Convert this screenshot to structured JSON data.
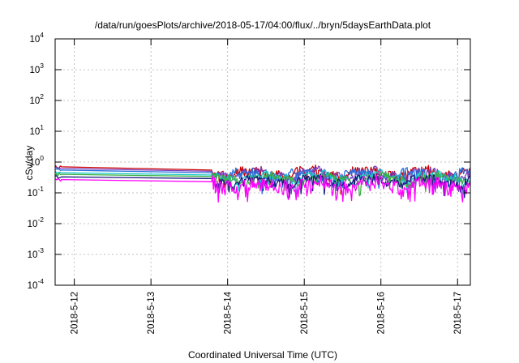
{
  "chart_data": {
    "type": "line",
    "title": "/data/run/goesPlots/archive/2018-05-17/04:00/flux/../bryn/5daysEarthData.plot",
    "xlabel": "Coordinated Universal Time (UTC)",
    "ylabel": "cSv/day",
    "yscale": "log",
    "ylim": [
      0.0001,
      10000
    ],
    "xlim": [
      "2018-05-11T18:00",
      "2018-05-17T04:00"
    ],
    "grid": true,
    "y_ticks": [
      {
        "base": "10",
        "exp": "-4",
        "value": 0.0001
      },
      {
        "base": "10",
        "exp": "-3",
        "value": 0.001
      },
      {
        "base": "10",
        "exp": "-2",
        "value": 0.01
      },
      {
        "base": "10",
        "exp": "-1",
        "value": 0.1
      },
      {
        "base": "10",
        "exp": "0",
        "value": 1
      },
      {
        "base": "10",
        "exp": "1",
        "value": 10
      },
      {
        "base": "10",
        "exp": "2",
        "value": 100
      },
      {
        "base": "10",
        "exp": "3",
        "value": 1000
      },
      {
        "base": "10",
        "exp": "4",
        "value": 10000
      }
    ],
    "x_ticks": [
      "2018-5-12",
      "2018-5-13",
      "2018-5-14",
      "2018-5-15",
      "2018-5-16",
      "2018-5-17"
    ],
    "x_tick_values": [
      "2018-05-12T00:00",
      "2018-05-13T00:00",
      "2018-05-14T00:00",
      "2018-05-15T00:00",
      "2018-05-16T00:00",
      "2018-05-17T00:00"
    ],
    "gap": [
      "2018-05-11T20:00",
      "2018-05-13T19:00"
    ],
    "series": [
      {
        "color": "#cc0000",
        "start": 0.7,
        "end": 0.55,
        "level": 0.48,
        "spread": 0.55,
        "seed": 11
      },
      {
        "color": "#7a3fbf",
        "start": 0.62,
        "end": 0.5,
        "level": 0.44,
        "spread": 0.55,
        "seed": 23
      },
      {
        "color": "#2a6fdb",
        "start": 0.55,
        "end": 0.45,
        "level": 0.4,
        "spread": 0.55,
        "seed": 37
      },
      {
        "color": "#18c8c8",
        "start": 0.45,
        "end": 0.38,
        "level": 0.34,
        "spread": 0.5,
        "seed": 41
      },
      {
        "color": "#3cb043",
        "start": 0.4,
        "end": 0.34,
        "level": 0.3,
        "spread": 0.45,
        "seed": 53
      },
      {
        "color": "#1a1a80",
        "start": 0.33,
        "end": 0.29,
        "level": 0.26,
        "spread": 0.45,
        "seed": 67
      },
      {
        "color": "#ff00ff",
        "start": 0.27,
        "end": 0.23,
        "level": 0.19,
        "spread": 1.1,
        "seed": 79
      }
    ]
  }
}
